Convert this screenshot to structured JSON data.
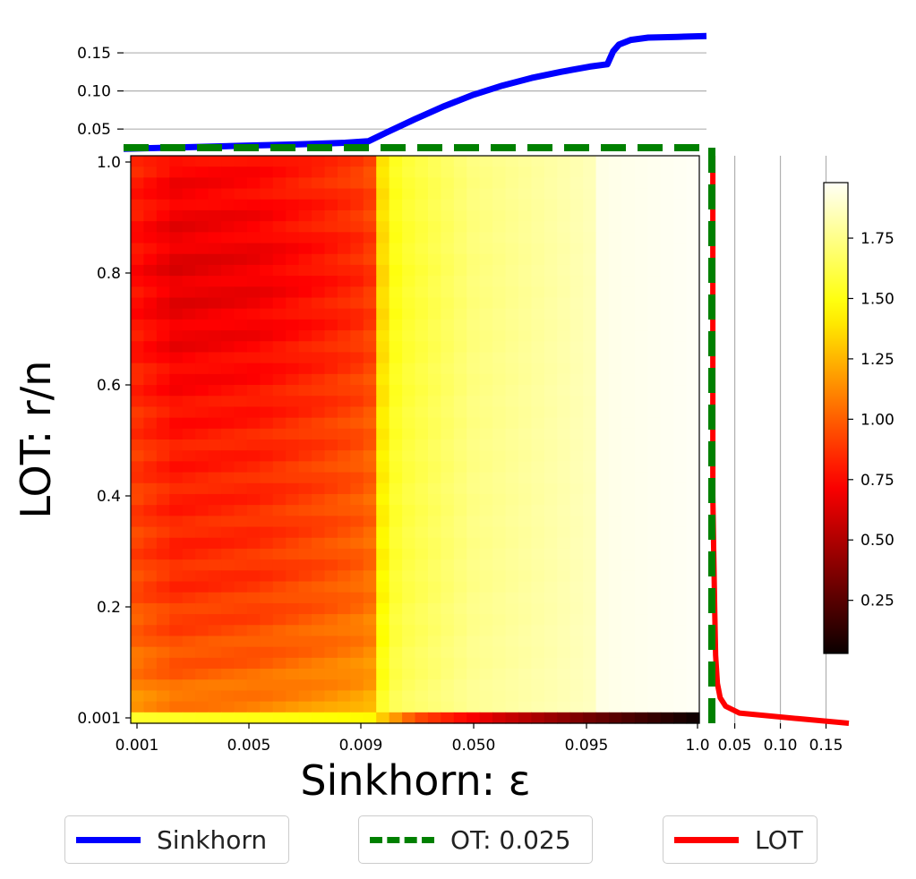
{
  "chart_data": [
    {
      "type": "heatmap",
      "xlabel": "Sinkhorn: ε",
      "ylabel": "LOT: r/n",
      "x_tick_labels": [
        "0.001",
        "0.005",
        "0.009",
        "0.050",
        "0.095",
        "1.0"
      ],
      "y_tick_labels": [
        "0.001",
        "0.2",
        "0.4",
        "0.6",
        "0.8",
        "1.0"
      ],
      "colormap": "hot",
      "colorbar": {
        "ticks": [
          0.25,
          0.5,
          0.75,
          1.0,
          1.25,
          1.5,
          1.75
        ],
        "range": [
          0.03,
          1.98
        ]
      },
      "grid_columns": 44,
      "grid_rows": 52,
      "column_profile": [
        {
          "x_frac": 0.0,
          "value": 0.92
        },
        {
          "x_frac": 0.08,
          "value": 0.82
        },
        {
          "x_frac": 0.22,
          "value": 0.85
        },
        {
          "x_frac": 0.34,
          "value": 0.93
        },
        {
          "x_frac": 0.42,
          "value": 1.0
        },
        {
          "x_frac": 0.43,
          "value": 1.35
        },
        {
          "x_frac": 0.47,
          "value": 1.58
        },
        {
          "x_frac": 0.6,
          "value": 1.74
        },
        {
          "x_frac": 0.82,
          "value": 1.86
        },
        {
          "x_frac": 0.83,
          "value": 1.95
        },
        {
          "x_frac": 1.0,
          "value": 1.98
        }
      ],
      "row_profile": [
        {
          "y_frac": 0.0,
          "delta": 0.55
        },
        {
          "y_frac": 0.1,
          "delta": 0.28
        },
        {
          "y_frac": 0.25,
          "delta": 0.05
        },
        {
          "y_frac": 0.5,
          "delta": -0.05
        },
        {
          "y_frac": 0.7,
          "delta": -0.25
        },
        {
          "y_frac": 0.8,
          "delta": -0.3
        },
        {
          "y_frac": 1.0,
          "delta": -0.15
        }
      ],
      "bottom_row_profile": [
        {
          "x_frac": 0.0,
          "value": 1.55
        },
        {
          "x_frac": 0.42,
          "value": 1.45
        },
        {
          "x_frac": 0.5,
          "value": 0.95
        },
        {
          "x_frac": 0.65,
          "value": 0.6
        },
        {
          "x_frac": 0.82,
          "value": 0.3
        },
        {
          "x_frac": 1.0,
          "value": 0.03
        }
      ]
    },
    {
      "type": "line",
      "series_name": "Sinkhorn",
      "color": "#0000ff",
      "y_tick_labels": [
        "0.05",
        "0.10",
        "0.15"
      ],
      "ylim": [
        0.022,
        0.19
      ],
      "x_frac": [
        0.0,
        0.1,
        0.2,
        0.3,
        0.38,
        0.42,
        0.45,
        0.5,
        0.55,
        0.6,
        0.65,
        0.7,
        0.75,
        0.8,
        0.83,
        0.84,
        0.85,
        0.87,
        0.9,
        0.95,
        1.0
      ],
      "values": [
        0.024,
        0.026,
        0.028,
        0.03,
        0.032,
        0.034,
        0.045,
        0.063,
        0.08,
        0.095,
        0.107,
        0.117,
        0.125,
        0.132,
        0.135,
        0.152,
        0.161,
        0.167,
        0.17,
        0.171,
        0.172
      ]
    },
    {
      "type": "line",
      "series_name": "OT: 0.025",
      "color": "#008000",
      "style": "dashed",
      "value": 0.025
    },
    {
      "type": "line",
      "series_name": "LOT",
      "color": "#ff0000",
      "x_tick_labels": [
        "0.05",
        "0.10",
        "0.15"
      ],
      "xlim": [
        0.02,
        0.175
      ],
      "y_frac": [
        1.0,
        0.9,
        0.8,
        0.7,
        0.6,
        0.5,
        0.4,
        0.3,
        0.2,
        0.12,
        0.07,
        0.045,
        0.03,
        0.018,
        0.008,
        0.0
      ],
      "values": [
        0.026,
        0.026,
        0.026,
        0.026,
        0.026,
        0.026,
        0.026,
        0.027,
        0.028,
        0.029,
        0.031,
        0.034,
        0.04,
        0.055,
        0.12,
        0.175
      ]
    }
  ],
  "legend": [
    {
      "label": "Sinkhorn",
      "color": "#0000ff",
      "style": "solid"
    },
    {
      "label": "OT: 0.025",
      "color": "#008000",
      "style": "dashed"
    },
    {
      "label": "LOT",
      "color": "#ff0000",
      "style": "solid"
    }
  ]
}
